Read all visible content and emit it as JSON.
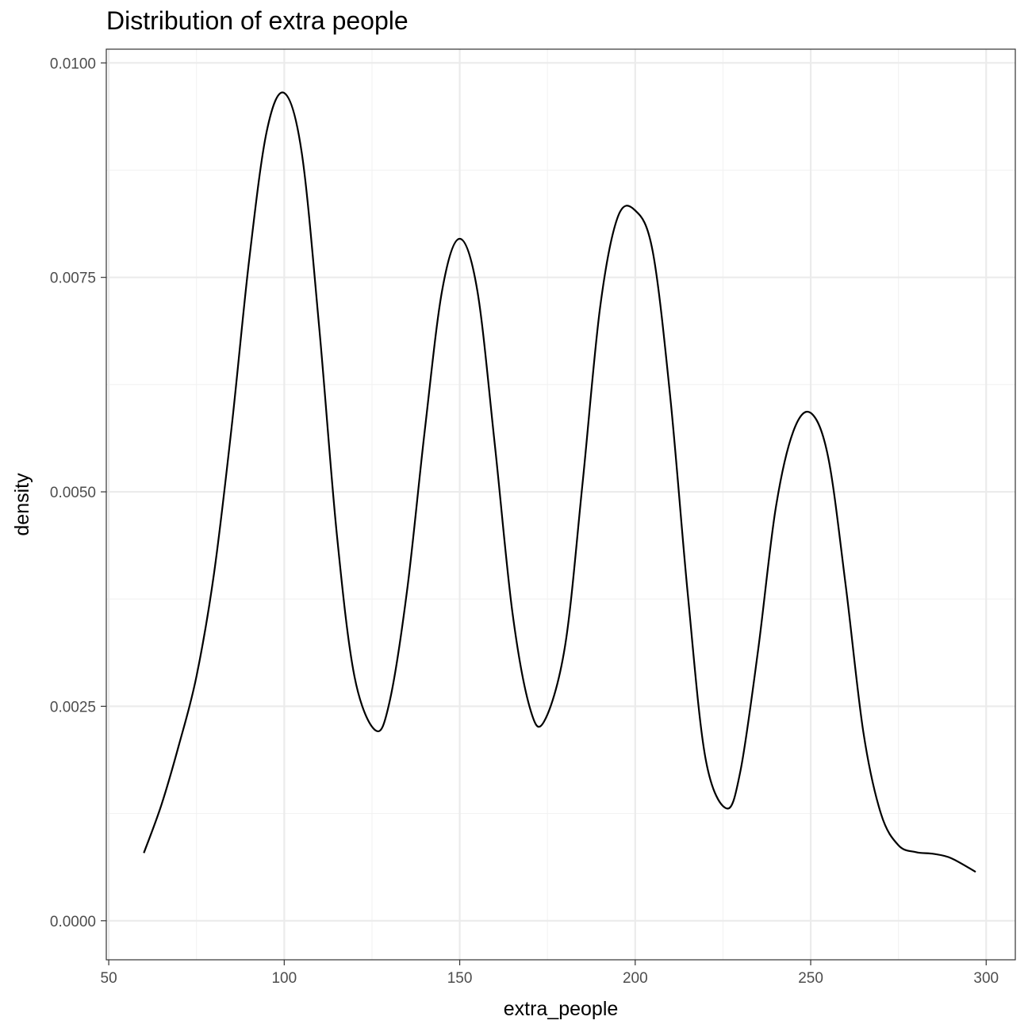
{
  "chart_data": {
    "type": "line",
    "title": "Distribution of extra people",
    "xlabel": "extra_people",
    "ylabel": "density",
    "xlim": [
      49.3,
      308.3
    ],
    "ylim": [
      -0.000455,
      0.01016
    ],
    "x_ticks": [
      {
        "value": 50,
        "label": "50"
      },
      {
        "value": 100,
        "label": "100"
      },
      {
        "value": 150,
        "label": "150"
      },
      {
        "value": 200,
        "label": "200"
      },
      {
        "value": 250,
        "label": "250"
      },
      {
        "value": 300,
        "label": "300"
      }
    ],
    "y_ticks": [
      {
        "value": 0.0,
        "label": "0.0000"
      },
      {
        "value": 0.0025,
        "label": "0.0025"
      },
      {
        "value": 0.005,
        "label": "0.0050"
      },
      {
        "value": 0.0075,
        "label": "0.0075"
      },
      {
        "value": 0.01,
        "label": "0.0100"
      }
    ],
    "grid": true,
    "colors": {
      "line": "#000000",
      "grid_major": "#ebebeb",
      "grid_minor": "#f2f2f2",
      "panel_border": "#333333"
    },
    "series": [
      {
        "x": [
          60,
          65,
          70,
          75,
          80,
          85,
          90,
          95,
          100,
          105,
          110,
          115,
          120,
          126,
          130,
          135,
          140,
          145,
          150,
          155,
          160,
          165,
          170,
          174,
          180,
          185,
          190,
          195,
          200,
          205,
          210,
          215,
          220,
          226,
          230,
          235,
          240,
          245,
          250,
          255,
          260,
          265,
          270,
          275,
          280,
          285,
          290,
          297
        ],
        "y": [
          0.00079,
          0.00135,
          0.00205,
          0.00285,
          0.00405,
          0.00575,
          0.0077,
          0.0092,
          0.00965,
          0.00895,
          0.0069,
          0.0045,
          0.00285,
          0.00222,
          0.00255,
          0.00385,
          0.0057,
          0.00735,
          0.00795,
          0.00735,
          0.00555,
          0.0036,
          0.00248,
          0.00232,
          0.0032,
          0.0051,
          0.00715,
          0.0082,
          0.00828,
          0.0078,
          0.0061,
          0.0038,
          0.0019,
          0.00131,
          0.00175,
          0.00315,
          0.0048,
          0.0057,
          0.00592,
          0.0054,
          0.0039,
          0.0022,
          0.00125,
          0.00088,
          0.0008,
          0.00078,
          0.00073,
          0.00057
        ]
      }
    ]
  }
}
